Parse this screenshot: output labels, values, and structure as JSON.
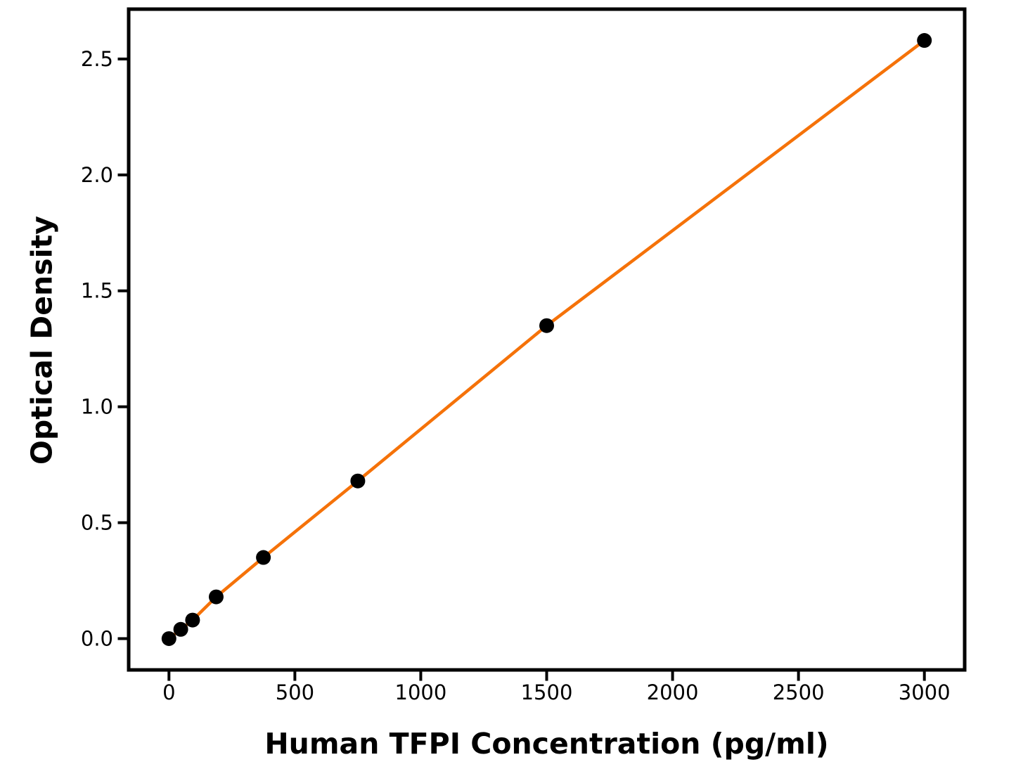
{
  "chart_data": {
    "type": "scatter",
    "subtype": "line-with-markers",
    "title": "",
    "xlabel": "Human TFPI Concentration (pg/ml)",
    "ylabel": "Optical Density",
    "x": [
      0,
      46.9,
      93.8,
      187.5,
      375,
      750,
      1500,
      3000
    ],
    "y": [
      0.0,
      0.04,
      0.08,
      0.18,
      0.35,
      0.68,
      1.35,
      2.58
    ],
    "xticks": {
      "values": [
        0,
        500,
        1000,
        1500,
        2000,
        2500,
        3000
      ],
      "labels": [
        "0",
        "500",
        "1000",
        "1500",
        "2000",
        "2500",
        "3000"
      ]
    },
    "yticks": {
      "values": [
        0.0,
        0.5,
        1.0,
        1.5,
        2.0,
        2.5
      ],
      "labels": [
        "0.0",
        "0.5",
        "1.0",
        "1.5",
        "2.0",
        "2.5"
      ]
    },
    "xlim": [
      -160,
      3160
    ],
    "ylim": [
      -0.135,
      2.715
    ],
    "grid": false,
    "legend": "none",
    "colors": {
      "line": "#F57209",
      "marker": "#000000",
      "axis": "#000000",
      "tick_label": "#000000",
      "background": "#FFFFFF"
    },
    "style": {
      "line_width": 4.5,
      "marker_radius": 10.5,
      "spine_width": 5,
      "tick_length": 13,
      "tick_width": 4,
      "tick_font_size": 29
    }
  }
}
